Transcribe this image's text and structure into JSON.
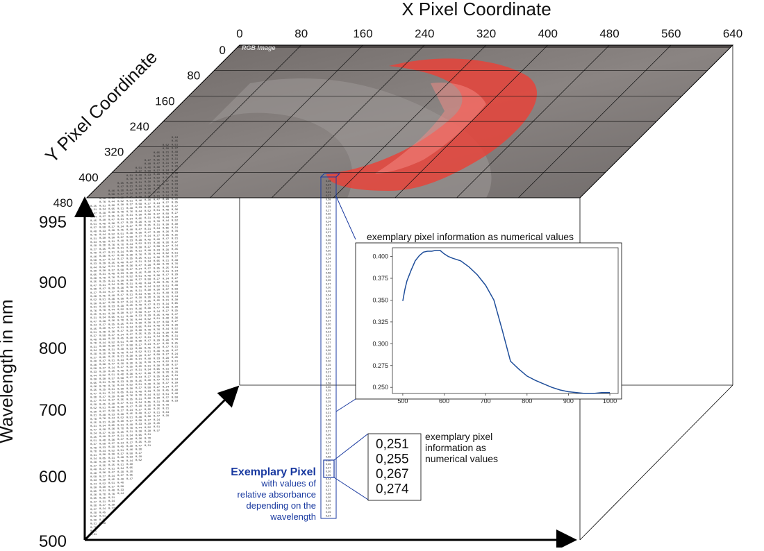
{
  "x_axis": {
    "title": "X Pixel Coordinate",
    "ticks": [
      "0",
      "80",
      "160",
      "240",
      "320",
      "400",
      "480",
      "560",
      "640"
    ]
  },
  "y_axis": {
    "title": "Y Pixel Coordinate",
    "ticks": [
      "0",
      "80",
      "160",
      "240",
      "320",
      "400",
      "480"
    ]
  },
  "wavelength_axis": {
    "title": "Wavelength in nm",
    "ticks": [
      "995",
      "900",
      "800",
      "700",
      "600",
      "500"
    ]
  },
  "image_label": "RGB Image",
  "spectrum_callout": "exemplary pixel information as numerical values",
  "numeric_callout": {
    "text_lines": [
      "exemplary pixel",
      "information as",
      "numerical values"
    ],
    "values": [
      "0,251",
      "0,255",
      "0,267",
      "0,274"
    ]
  },
  "exemplary_pixel": {
    "title": "Exemplary Pixel",
    "lines": [
      "with values of",
      "relative absorbance",
      "depending on the",
      "wavelength"
    ]
  },
  "colors": {
    "accent_blue": "#1a3aa0",
    "curve_blue": "#1f4e9a",
    "tissue_red": "#e8433a",
    "image_gray": "#7f7a78"
  },
  "chart_data": {
    "type": "line",
    "title": "",
    "xlabel": "",
    "ylabel": "",
    "xlim": [
      475,
      1020
    ],
    "ylim": [
      0.243,
      0.41
    ],
    "x_ticks": [
      "500",
      "600",
      "700",
      "800",
      "900",
      "1000"
    ],
    "y_ticks": [
      "0.250",
      "0.275",
      "0.300",
      "0.325",
      "0.350",
      "0.375",
      "0.400"
    ],
    "x": [
      500,
      505,
      510,
      520,
      530,
      540,
      550,
      560,
      570,
      580,
      590,
      600,
      610,
      620,
      640,
      660,
      680,
      700,
      720,
      740,
      760,
      780,
      800,
      820,
      840,
      860,
      880,
      900,
      920,
      940,
      960,
      980,
      1000
    ],
    "y": [
      0.349,
      0.362,
      0.372,
      0.384,
      0.395,
      0.401,
      0.405,
      0.406,
      0.406,
      0.407,
      0.407,
      0.403,
      0.4,
      0.398,
      0.395,
      0.388,
      0.379,
      0.367,
      0.35,
      0.316,
      0.28,
      0.271,
      0.263,
      0.258,
      0.254,
      0.25,
      0.247,
      0.245,
      0.244,
      0.243,
      0.243,
      0.244,
      0.244
    ]
  },
  "matrix_values": [
    "0,25",
    "0,31",
    "0,47",
    "0,24",
    "0,45",
    "0,51",
    "0,37",
    "0,48",
    "0,76",
    "0,31",
    "0,34",
    "0,29",
    "0,27",
    "0,40",
    "0,46",
    "0,58",
    "0,33",
    "0,44",
    "0,30",
    "0,65",
    "0,26",
    "0,35",
    "0,47",
    "0,36",
    "0,27",
    "0,29",
    "0,52",
    "0,30",
    "0,31",
    "0,76"
  ]
}
